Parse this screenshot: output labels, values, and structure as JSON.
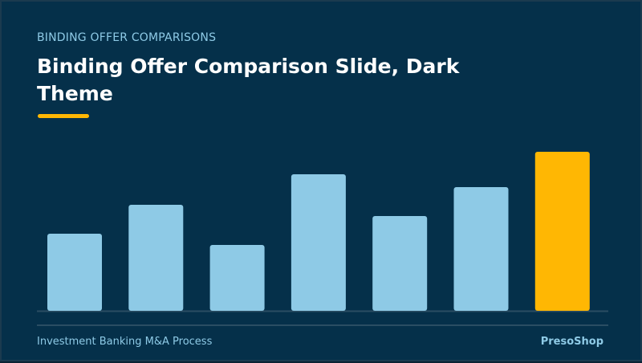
{
  "slide": {
    "eyebrow": "BINDING OFFER COMPARISONS",
    "title": "Binding Offer Comparison Slide, Dark Theme",
    "footer_left": "Investment Banking M&A Process",
    "footer_right": "PresoShop"
  },
  "colors": {
    "background": "#05304a",
    "bar": "#8ecae6",
    "highlight": "#ffb703",
    "baseline": "#2a4d63"
  },
  "chart_data": {
    "type": "bar",
    "categories": [
      "",
      "",
      "",
      "",
      "",
      "",
      ""
    ],
    "values": [
      48,
      66,
      41,
      85,
      59,
      77,
      99
    ],
    "highlight_index": 6,
    "ylim": [
      0,
      100
    ],
    "title": "",
    "xlabel": "",
    "ylabel": "",
    "grid": false,
    "legend": "none"
  }
}
